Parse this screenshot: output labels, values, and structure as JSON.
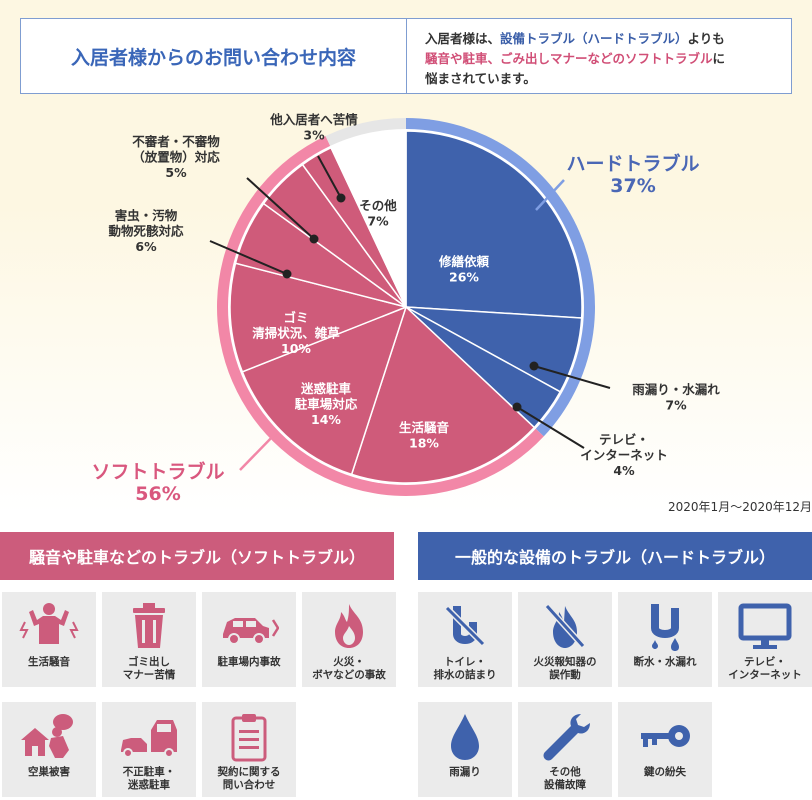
{
  "header": {
    "title": "入居者様からのお問い合わせ内容",
    "desc_parts": [
      "入居者様は、",
      "設備トラブル（ハードトラブル）",
      "よりも",
      "騒音や駐車、ごみ出しマナーなどのソフトトラブル",
      "に",
      "悩まされています。"
    ]
  },
  "chart_data": {
    "type": "pie",
    "title": "",
    "slices": [
      {
        "label": "修繕依頼",
        "value": 26,
        "group": "hard"
      },
      {
        "label": "雨漏り・水漏れ",
        "value": 7,
        "group": "hard"
      },
      {
        "label": "テレビ・インターネット",
        "value": 4,
        "group": "hard"
      },
      {
        "label": "生活騒音",
        "value": 18,
        "group": "soft"
      },
      {
        "label": "迷惑駐車 駐車場対応",
        "value": 14,
        "group": "soft"
      },
      {
        "label": "ゴミ 清掃状況、雑草",
        "value": 10,
        "group": "soft"
      },
      {
        "label": "害虫・汚物 動物死骸対応",
        "value": 6,
        "group": "soft"
      },
      {
        "label": "不審者・不審物（放置物）対応",
        "value": 5,
        "group": "soft"
      },
      {
        "label": "他入居者へ苦情",
        "value": 3,
        "group": "soft"
      },
      {
        "label": "その他",
        "value": 7,
        "group": "other"
      }
    ],
    "groups": [
      {
        "name": "ハードトラブル",
        "value": 37
      },
      {
        "name": "ソフトトラブル",
        "value": 56
      }
    ],
    "inner_labels": [
      {
        "lines": [
          "修繕依頼",
          "26%"
        ]
      },
      {
        "lines": [
          "生活騒音",
          "18%"
        ]
      },
      {
        "lines": [
          "迷惑駐車",
          "駐車場対応",
          "14%"
        ]
      },
      {
        "lines": [
          "ゴミ",
          "清掃状況、雑草",
          "10%"
        ]
      },
      {
        "lines": [
          "その他",
          "7%"
        ]
      }
    ],
    "outer_labels": [
      {
        "lines": [
          "雨漏り・水漏れ",
          "7%"
        ]
      },
      {
        "lines": [
          "テレビ・",
          "インターネット",
          "4%"
        ]
      },
      {
        "lines": [
          "害虫・汚物",
          "動物死骸対応",
          "6%"
        ]
      },
      {
        "lines": [
          "不審者・不審物",
          "（放置物）対応",
          "5%"
        ]
      },
      {
        "lines": [
          "他入居者へ苦情",
          "3%"
        ]
      }
    ],
    "colors": {
      "hard": "#3f62ac",
      "hard_ring": "#7f9ee3",
      "soft": "#cf5b7a",
      "soft_ring": "#f287a7",
      "other": "#ffffff",
      "other_ring": "#e6e6e6"
    }
  },
  "date_note": "2020年1月～2020年12月",
  "soft_section": {
    "title": "騒音や駐車などのトラブル（ソフトトラブル）",
    "items": [
      "生活騒音",
      "ゴミ出し\nマナー苦情",
      "駐車場内事故",
      "火災・\nボヤなどの事故",
      "空巣被害",
      "不正駐車・\n迷惑駐車",
      "契約に関する\n問い合わせ"
    ],
    "icons": [
      "noise-person-icon",
      "trash-can-icon",
      "car-crash-icon",
      "fire-icon",
      "burglar-icon",
      "illegal-parking-icon",
      "clipboard-icon"
    ],
    "color": "#cc5c7c"
  },
  "hard_section": {
    "title": "一般的な設備のトラブル（ハードトラブル）",
    "items": [
      "トイレ・\n排水の詰まり",
      "火災報知器の\n誤作動",
      "断水・水漏れ",
      "テレビ・\nインターネット",
      "雨漏り",
      "その他\n設備故障",
      "鍵の紛失"
    ],
    "icons": [
      "clogged-drain-icon",
      "fire-alarm-off-icon",
      "water-leak-icon",
      "tv-monitor-icon",
      "raindrop-icon",
      "wrench-icon",
      "key-icon"
    ],
    "color": "#3f62ac"
  }
}
